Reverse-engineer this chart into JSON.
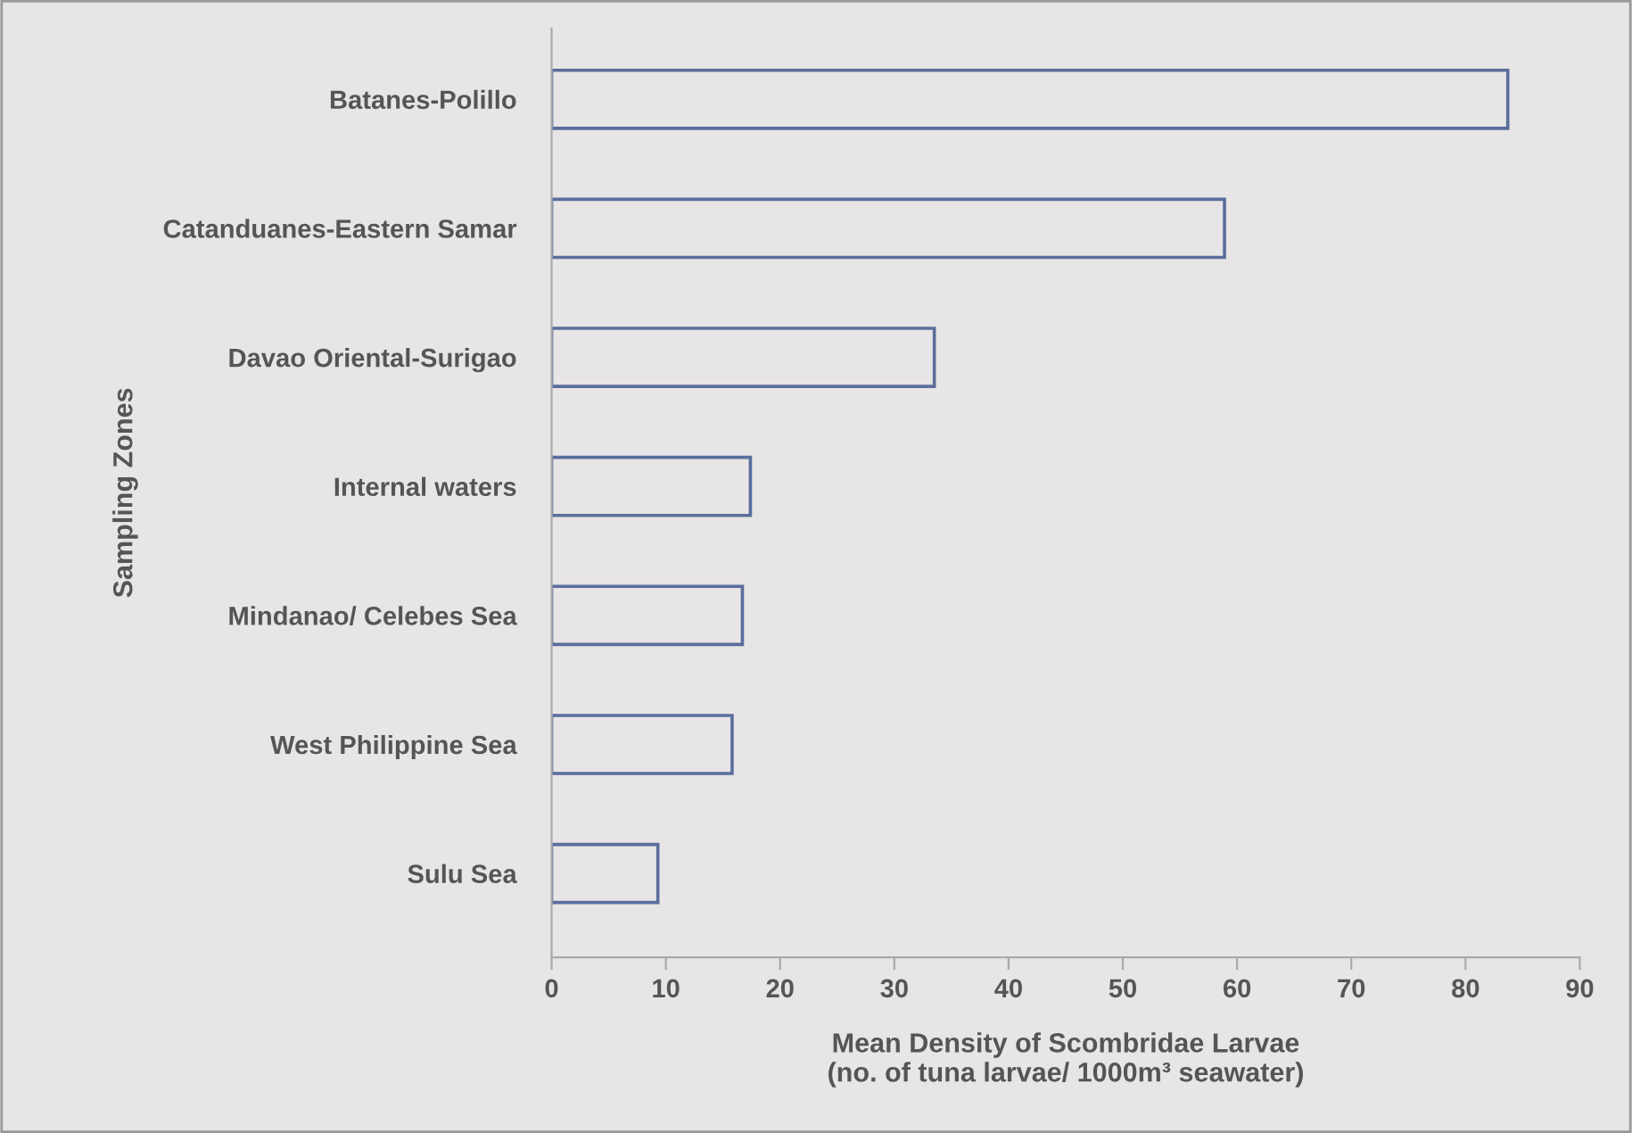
{
  "chart_data": {
    "type": "bar",
    "orientation": "horizontal",
    "categories": [
      "Batanes-Polillo",
      "Catanduanes-Eastern Samar",
      "Davao Oriental-Surigao",
      "Internal waters",
      "Mindanao/ Celebes Sea",
      "West Philippine Sea",
      "Sulu Sea"
    ],
    "values": [
      83.7,
      58.9,
      33.5,
      17.4,
      16.7,
      15.8,
      9.3
    ],
    "color": "#5a6e9c",
    "xlim": [
      0,
      90
    ],
    "xticks": [
      0,
      10,
      20,
      30,
      40,
      50,
      60,
      70,
      80,
      90
    ],
    "xlabel": "Mean Density of Scombridae Larvae\n(no. of tuna larvae/ 1000m³ seawater)",
    "ylabel": "Sampling Zones",
    "grid": false
  }
}
